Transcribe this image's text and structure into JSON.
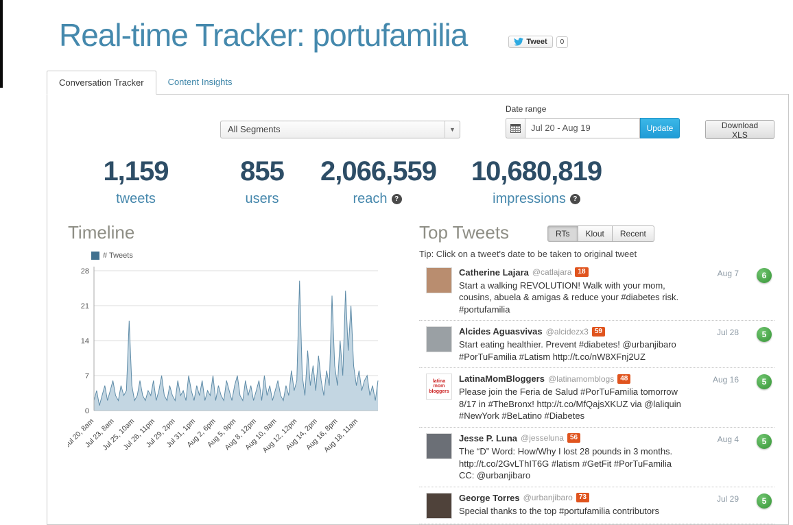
{
  "colors": {
    "title_blue": "#4589ad",
    "stat_number": "#2d4d66",
    "stat_label": "#4587ac",
    "update_button_blue": "#2aa9e0",
    "klout_badge_orange": "#e0541e",
    "rt_badge_green": "#3fa33f",
    "chart_line": "#5f8ca8",
    "chart_fill": "#b9cfdd",
    "legend_swatch": "#41718f"
  },
  "header": {
    "title": "Real-time Tracker: portufamilia",
    "tweet_button_label": "Tweet",
    "tweet_count": "0"
  },
  "tabs": [
    {
      "label": "Conversation Tracker",
      "active": true
    },
    {
      "label": "Content Insights",
      "active": false
    }
  ],
  "controls": {
    "segments_dropdown_value": "All Segments",
    "date_range_label": "Date range",
    "date_range_value": "Jul 20 - Aug 19",
    "update_label": "Update",
    "download_label": "Download XLS"
  },
  "help_glyph": "?",
  "stats": [
    {
      "value": "1,159",
      "label": "tweets",
      "help": false
    },
    {
      "value": "855",
      "label": "users",
      "help": false
    },
    {
      "value": "2,066,559",
      "label": "reach",
      "help": true
    },
    {
      "value": "10,680,819",
      "label": "impressions",
      "help": true
    }
  ],
  "timeline": {
    "heading": "Timeline"
  },
  "chart_data": {
    "type": "area",
    "title": "Timeline",
    "series_name": "# Tweets",
    "ylim": [
      0,
      28
    ],
    "yticks": [
      0,
      7,
      14,
      21,
      28
    ],
    "grid": true,
    "legend_position": "top-left",
    "x_label_rotation": -45,
    "x_tick_labels": [
      "Jul 20, 8am",
      "Jul 23, 8am",
      "Jul 25, 10am",
      "Jul 26, 11pm",
      "Jul 29, 2pm",
      "Jul 31, 1pm",
      "Aug 2, 6pm",
      "Aug 5, 9pm",
      "Aug 8, 12pm",
      "Aug 10, 9am",
      "Aug 12, 12pm",
      "Aug 14, 2pm",
      "Aug 16, 8pm",
      "Aug 18, 11am"
    ],
    "values": [
      2,
      4,
      1,
      3,
      5,
      2,
      4,
      6,
      3,
      2,
      5,
      3,
      4,
      18,
      5,
      2,
      3,
      6,
      3,
      2,
      4,
      3,
      6,
      2,
      4,
      7,
      3,
      2,
      5,
      3,
      2,
      6,
      3,
      4,
      2,
      7,
      4,
      2,
      5,
      3,
      6,
      2,
      4,
      3,
      7,
      2,
      5,
      3,
      2,
      6,
      4,
      2,
      5,
      7,
      3,
      2,
      6,
      3,
      5,
      2,
      4,
      6,
      2,
      7,
      3,
      5,
      2,
      4,
      6,
      3,
      2,
      5,
      3,
      8,
      4,
      6,
      26,
      7,
      3,
      12,
      5,
      9,
      4,
      11,
      6,
      3,
      8,
      5,
      23,
      9,
      5,
      14,
      7,
      24,
      12,
      21,
      9,
      5,
      8,
      4,
      6,
      7,
      3,
      5,
      2,
      6
    ]
  },
  "top_tweets": {
    "heading": "Top Tweets",
    "filters": [
      "RTs",
      "Klout",
      "Recent"
    ],
    "active_filter": "RTs",
    "tip": "Tip: Click on a tweet's date to be taken to original tweet",
    "tweets": [
      {
        "name": "Catherine Lajara",
        "handle": "@catlajara",
        "klout": "18",
        "date": "Aug 7",
        "rt_count": "6",
        "text": "Start a walking REVOLUTION! Walk with your mom, cousins, abuela & amigas & reduce your #diabetes risk. #portufamilia",
        "avatar_color": "#b98d6f",
        "avatar_text": "",
        "avatar_text_color": "#ffffff"
      },
      {
        "name": "Alcides Aguasvivas",
        "handle": "@alcidezx3",
        "klout": "59",
        "date": "Jul 28",
        "rt_count": "5",
        "text": "Start eating healthier. Prevent #diabetes! @urbanjibaro #PorTuFamilia #Latism http://t.co/nW8XFnj2UZ",
        "avatar_color": "#9aa0a4",
        "avatar_text": "",
        "avatar_text_color": "#ffffff"
      },
      {
        "name": "LatinaMomBloggers",
        "handle": "@latinamomblogs",
        "klout": "48",
        "date": "Aug 16",
        "rt_count": "5",
        "text": "Please join the Feria de Salud #PorTuFamilia tomorrow 8/17 in #TheBronx! http://t.co/MfQajsXKUZ via @laliquin #NewYork #BeLatino #Diabetes",
        "avatar_color": "#ffffff",
        "avatar_text": "latina mom bloggers",
        "avatar_text_color": "#cc2222"
      },
      {
        "name": "Jesse P. Luna",
        "handle": "@jesseluna",
        "klout": "56",
        "date": "Aug 4",
        "rt_count": "5",
        "text": "The “D” Word: How/Why I lost 28 pounds in 3 months. http://t.co/2GvLThIT6G #latism #GetFit #PorTuFamilia CC: @urbanjibaro",
        "avatar_color": "#6b6f76",
        "avatar_text": "",
        "avatar_text_color": "#ffffff"
      },
      {
        "name": "George Torres",
        "handle": "@urbanjibaro",
        "klout": "73",
        "date": "Jul 29",
        "rt_count": "5",
        "text": "Special thanks to the top #portufamilia contributors",
        "avatar_color": "#4f423a",
        "avatar_text": "",
        "avatar_text_color": "#ffffff"
      }
    ]
  }
}
